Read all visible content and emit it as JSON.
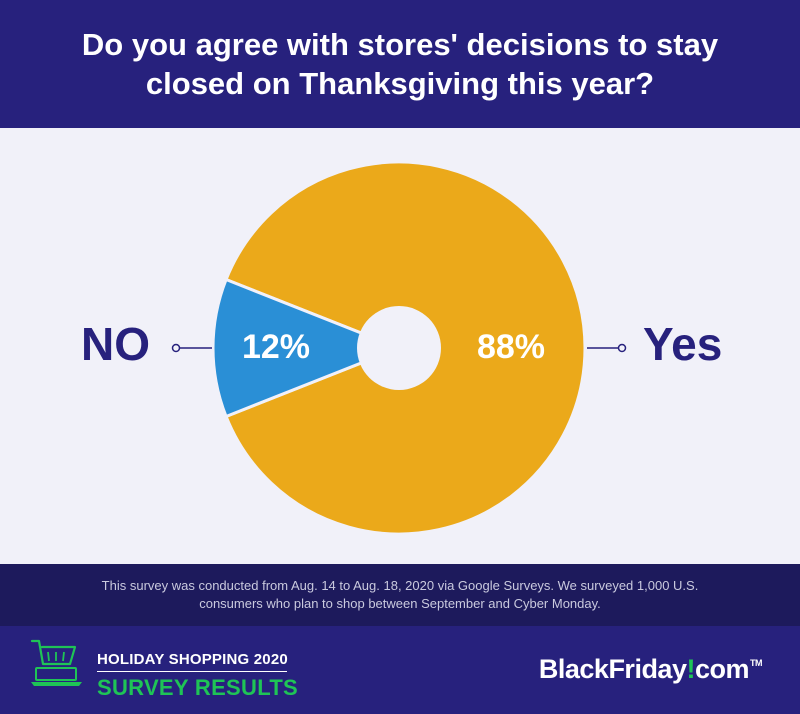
{
  "header": {
    "title": "Do you agree with stores' decisions to stay closed on Thanksgiving this year?"
  },
  "chart_data": {
    "type": "pie",
    "title": "Do you agree with stores' decisions to stay closed on Thanksgiving this year?",
    "slices": [
      {
        "label": "Yes",
        "value": 88,
        "value_label": "88%",
        "color": "#eba91a"
      },
      {
        "label": "NO",
        "value": 12,
        "value_label": "12%",
        "color": "#2a8fd6"
      }
    ],
    "donut_hole": true,
    "legend_placement": "side-labels"
  },
  "footnote": {
    "text": "This survey was conducted from Aug. 14 to Aug. 18, 2020 via Google Surveys. We surveyed 1,000 U.S. consumers who plan to shop between September and Cyber Monday."
  },
  "footer": {
    "subtitle": "HOLIDAY SHOPPING 2020",
    "title": "SURVEY RESULTS",
    "brand": {
      "part1": "BlackFriday",
      "bang": "!",
      "part2": "com",
      "tm": "TM"
    },
    "icon": "shopping-cart-laptop-icon",
    "accent_color": "#1fc456"
  }
}
